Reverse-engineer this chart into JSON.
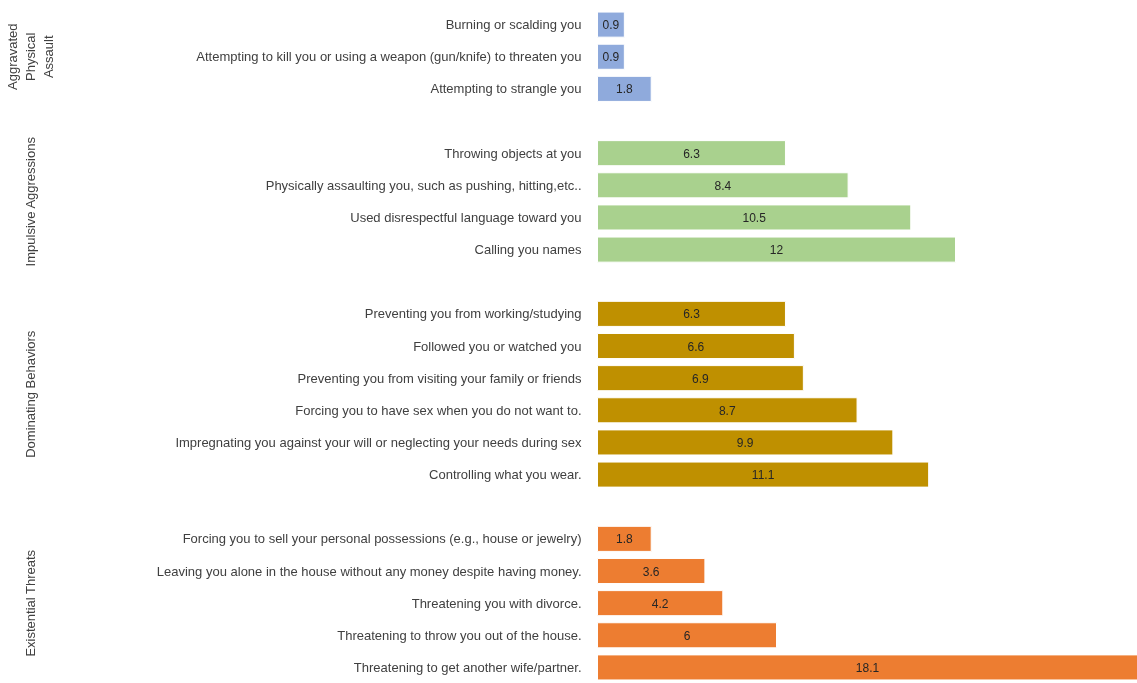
{
  "chart_data": {
    "type": "bar",
    "orientation": "horizontal",
    "data_labels": true,
    "grid": false,
    "categories": [
      "Burning or scalding you",
      "Attempting to kill you or using a weapon (gun/knife) to threaten you",
      "Attempting to strangle you",
      null,
      "Throwing objects at you",
      "Physically assaulting you, such as pushing, hitting,etc..",
      "Used disrespectful language toward you",
      "Calling you names",
      null,
      "Preventing you from working/studying",
      "Followed you or watched you",
      "Preventing you from visiting your family or friends",
      "Forcing you to have sex when you do not want to.",
      "Impregnating you against your will or neglecting your needs during sex",
      "Controlling what you wear.",
      null,
      "Forcing you to sell your personal possessions (e.g., house or jewelry)",
      "Leaving you alone in the house without any money despite having money.",
      "Threatening you with divorce.",
      "Threatening to throw you out of the house.",
      "Threatening to get another wife/partner."
    ],
    "values": [
      0.9,
      0.9,
      1.8,
      null,
      6.3,
      8.4,
      10.5,
      12,
      null,
      6.3,
      6.6,
      6.9,
      8.7,
      9.9,
      11.1,
      null,
      1.8,
      3.6,
      4.2,
      6,
      18.1
    ],
    "colors": [
      "#8faadc",
      "#8faadc",
      "#8faadc",
      null,
      "#a9d18e",
      "#a9d18e",
      "#a9d18e",
      "#a9d18e",
      null,
      "#bf9000",
      "#bf9000",
      "#bf9000",
      "#bf9000",
      "#bf9000",
      "#bf9000",
      null,
      "#ed7d31",
      "#ed7d31",
      "#ed7d31",
      "#ed7d31",
      "#ed7d31"
    ],
    "annotations": [
      "Aggravated Physical Assault",
      "Impulsive Aggressions",
      "Dominating Behaviors",
      "Existential Threats"
    ]
  }
}
